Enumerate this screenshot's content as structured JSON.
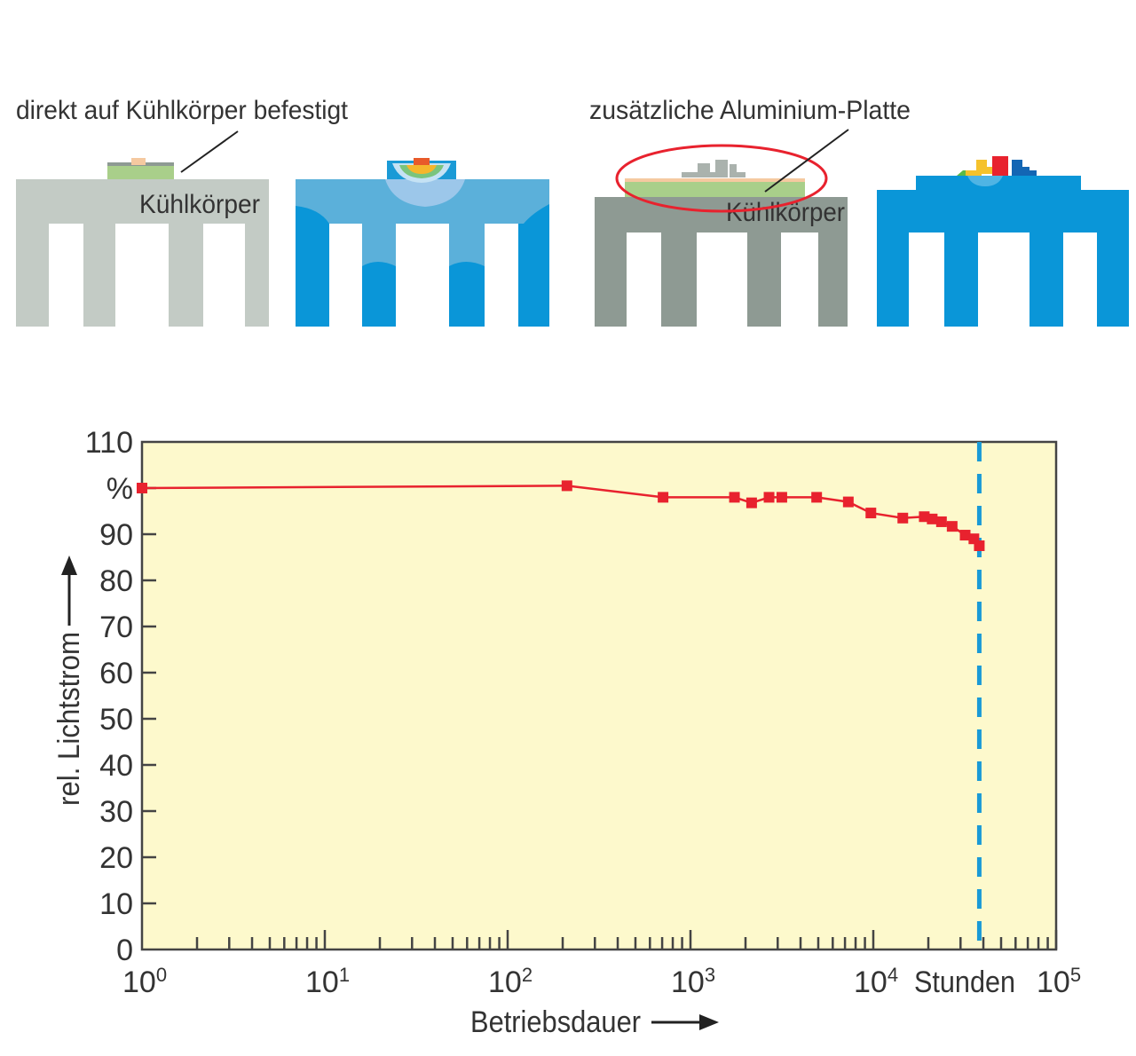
{
  "diagram": {
    "label_left": "direkt auf Kühlkörper befestigt",
    "label_right": "zusätzliche Aluminium-Platte",
    "heatsink_label_1": "Kühlkörper",
    "heatsink_label_2": "Kühlkörper"
  },
  "colors": {
    "plot_bg": "#fdf9cc",
    "series": "#e8222e",
    "marker_line": "#1a9ad6",
    "heatsink_gray_light": "#c3cbc5",
    "heatsink_gray_dark": "#8e9a93",
    "thermal_blue": "#0a96d8",
    "thermal_light_blue": "#5bb0da"
  },
  "chart_data": {
    "type": "line",
    "title": "",
    "xlabel": "Betriebsdauer",
    "ylabel": "rel. Lichtstrom",
    "y_unit_label": "%",
    "x_unit_label": "Stunden",
    "xscale": "log",
    "xlim": [
      1,
      100000
    ],
    "ylim": [
      0,
      110
    ],
    "x_tick_labels": [
      {
        "base": "10",
        "exp": "0",
        "value": 1
      },
      {
        "base": "10",
        "exp": "1",
        "value": 10
      },
      {
        "base": "10",
        "exp": "2",
        "value": 100
      },
      {
        "base": "10",
        "exp": "3",
        "value": 1000
      },
      {
        "base": "10",
        "exp": "4",
        "value": 10000
      },
      {
        "base": "10",
        "exp": "5",
        "value": 100000
      }
    ],
    "y_tick_labels": [
      "0",
      "10",
      "20",
      "30",
      "40",
      "50",
      "60",
      "70",
      "80",
      "90",
      "%",
      "110"
    ],
    "y_tick_values": [
      0,
      10,
      20,
      30,
      40,
      50,
      60,
      70,
      80,
      90,
      100,
      110
    ],
    "grid": false,
    "series": [
      {
        "name": "rel. Lichtstrom",
        "x": [
          1,
          211,
          708,
          1740,
          2160,
          2690,
          3160,
          4900,
          7300,
          9700,
          14500,
          19000,
          21000,
          23600,
          27000,
          31800,
          35500,
          38000
        ],
        "y": [
          100,
          100.5,
          98,
          98,
          96.8,
          98,
          98,
          98,
          97,
          94.6,
          93.5,
          93.8,
          93.3,
          92.7,
          91.7,
          89.8,
          89,
          87.5
        ]
      }
    ],
    "vertical_marker_x": 38000
  }
}
